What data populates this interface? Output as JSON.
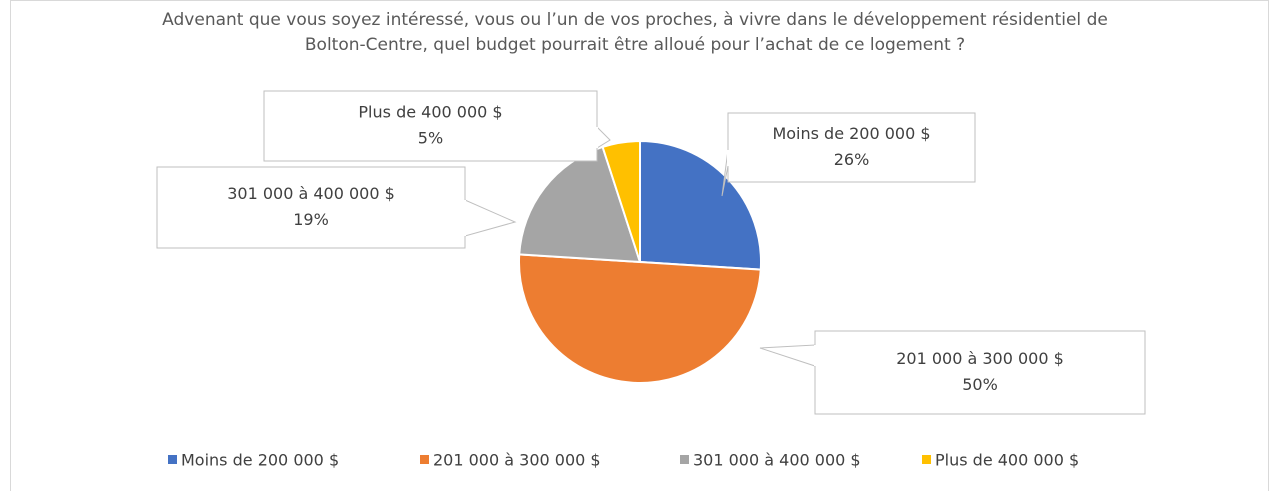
{
  "chart_data": {
    "type": "pie",
    "title": "Advenant que vous soyez intéressé, vous ou l’un de vos proches, à vivre dans le développement résidentiel de Bolton-Centre, quel budget pourrait être alloué pour l’achat de ce logement ?",
    "categories": [
      "Moins de 200 000 $",
      "201 000 à 300 000 $",
      "301 000 à 400 000 $",
      "Plus de 400 000 $"
    ],
    "values": [
      26,
      50,
      19,
      5
    ],
    "value_labels": [
      "26%",
      "50%",
      "19%",
      "5%"
    ],
    "colors": [
      "#4472c4",
      "#ed7d31",
      "#a5a5a5",
      "#ffc000"
    ],
    "legend": "bottom"
  }
}
